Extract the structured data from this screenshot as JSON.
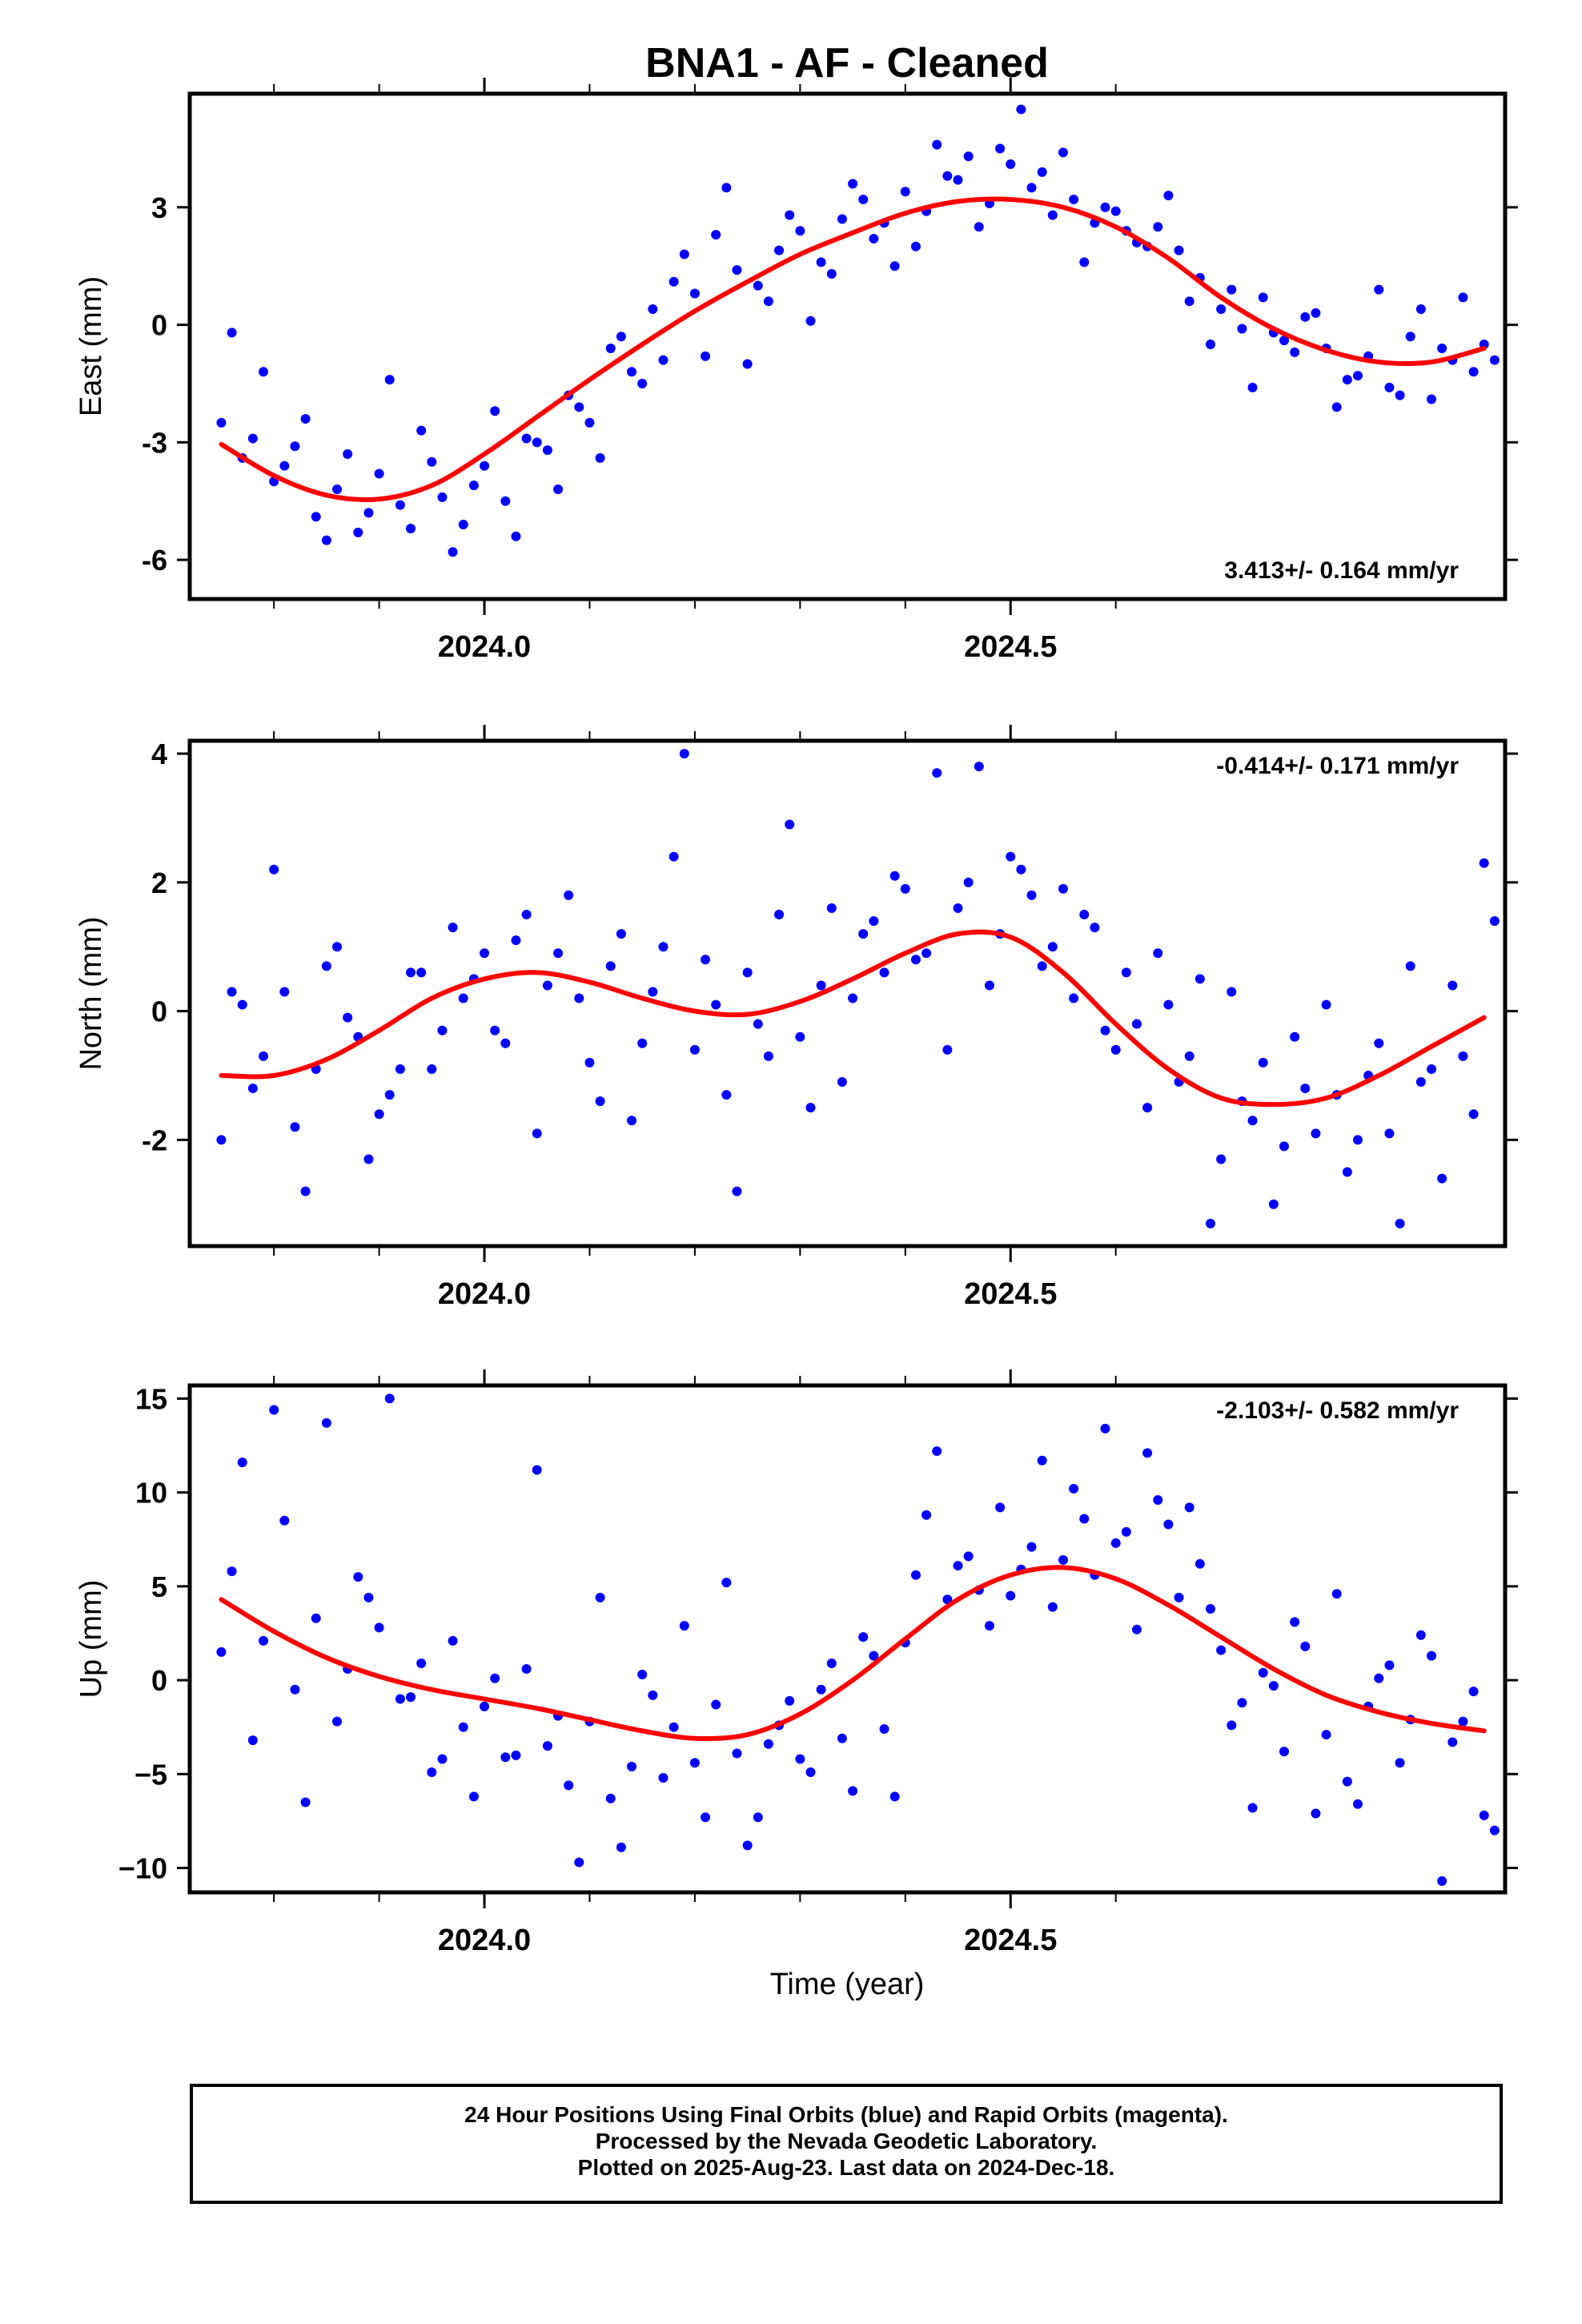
{
  "title": "BNA1  - AF - Cleaned",
  "xlabel": "Time (year)",
  "footer": {
    "line1": "24 Hour Positions Using Final Orbits (blue) and Rapid Orbits (magenta).",
    "line2": "Processed by the Nevada Geodetic Laboratory.",
    "line3": "Plotted on 2025-Aug-23. Last data on 2024-Dec-18."
  },
  "colors": {
    "points": "#0000ff",
    "fit": "#ff0000",
    "axes": "#000000"
  },
  "chart_data": [
    {
      "type": "scatter",
      "ylabel": "East (mm)",
      "rate_label": "3.413+/- 0.164 mm/yr",
      "xlim": [
        2023.72,
        2024.97
      ],
      "ylim": [
        -7.0,
        5.9
      ],
      "xticks": [
        2024.0,
        2024.5
      ],
      "yticks": [
        -6,
        -3,
        0,
        3
      ],
      "ytick_labels": [
        "-6",
        "-3",
        "0",
        "3"
      ],
      "series": [
        {
          "kind": "points",
          "x": [
            2023.75,
            2023.77,
            2023.79,
            2023.8,
            2023.82,
            2023.84,
            2023.86,
            2023.88,
            2023.9,
            2023.92,
            2023.94,
            2023.96,
            2023.98,
            2024.0,
            2024.02,
            2024.04,
            2024.06,
            2024.08,
            2024.1,
            2024.12,
            2024.14,
            2024.16,
            2024.18,
            2024.2,
            2024.22,
            2024.24,
            2024.26,
            2024.28,
            2024.3,
            2024.32,
            2024.34,
            2024.36,
            2024.38,
            2024.4,
            2024.42,
            2024.44,
            2024.46,
            2024.48,
            2024.5,
            2024.52,
            2024.54,
            2024.56,
            2024.58,
            2024.6,
            2024.62,
            2024.64,
            2024.66,
            2024.68,
            2024.7,
            2024.72,
            2024.74,
            2024.76,
            2024.78,
            2024.8,
            2024.82,
            2024.84,
            2024.86,
            2024.88,
            2024.9,
            2024.92,
            2024.94,
            2024.95
          ],
          "y": [
            -2.5,
            -3.4,
            -1.2,
            -4.0,
            -3.1,
            -4.9,
            -4.2,
            -5.3,
            -3.8,
            -4.6,
            -2.7,
            -4.4,
            -5.1,
            -3.6,
            -4.5,
            -2.9,
            -3.2,
            -1.8,
            -2.5,
            -0.6,
            -1.2,
            0.4,
            1.1,
            0.8,
            2.3,
            1.4,
            1.0,
            1.9,
            2.4,
            1.6,
            2.7,
            3.2,
            2.6,
            3.4,
            2.9,
            3.8,
            4.3,
            3.1,
            4.1,
            3.5,
            2.8,
            3.2,
            2.6,
            2.9,
            2.1,
            2.5,
            1.9,
            1.2,
            0.4,
            -0.1,
            0.7,
            -0.4,
            0.2,
            -0.6,
            -1.4,
            -0.8,
            -1.6,
            -0.3,
            -1.9,
            -0.9,
            -1.2,
            -0.5
          ]
        },
        {
          "kind": "points",
          "x": [
            2023.76,
            2023.78,
            2023.81,
            2023.83,
            2023.85,
            2023.87,
            2023.89,
            2023.91,
            2023.93,
            2023.95,
            2023.97,
            2023.99,
            2024.01,
            2024.03,
            2024.05,
            2024.07,
            2024.09,
            2024.11,
            2024.13,
            2024.15,
            2024.17,
            2024.19,
            2024.21,
            2024.23,
            2024.25,
            2024.27,
            2024.29,
            2024.31,
            2024.33,
            2024.35,
            2024.37,
            2024.39,
            2024.41,
            2024.43,
            2024.45,
            2024.47,
            2024.49,
            2024.51,
            2024.53,
            2024.55,
            2024.57,
            2024.59,
            2024.61,
            2024.63,
            2024.65,
            2024.67,
            2024.69,
            2024.71,
            2024.73,
            2024.75,
            2024.77,
            2024.79,
            2024.81,
            2024.83,
            2024.85,
            2024.87,
            2024.89,
            2024.91,
            2024.93,
            2024.96
          ],
          "y": [
            -0.2,
            -2.9,
            -3.6,
            -2.4,
            -5.5,
            -3.3,
            -4.8,
            -1.4,
            -5.2,
            -3.5,
            -5.8,
            -4.1,
            -2.2,
            -5.4,
            -3.0,
            -4.2,
            -2.1,
            -3.4,
            -0.3,
            -1.5,
            -0.9,
            1.8,
            -0.8,
            3.5,
            -1.0,
            0.6,
            2.8,
            0.1,
            1.3,
            3.6,
            2.2,
            1.5,
            2.0,
            4.6,
            3.7,
            2.5,
            4.5,
            5.5,
            3.9,
            4.4,
            1.6,
            3.0,
            2.4,
            2.0,
            3.3,
            0.6,
            -0.5,
            0.9,
            -1.6,
            -0.2,
            -0.7,
            0.3,
            -2.1,
            -1.3,
            0.9,
            -1.8,
            0.4,
            -0.6,
            0.7,
            -0.9
          ]
        },
        {
          "kind": "fit",
          "x": [
            2023.75,
            2023.8,
            2023.85,
            2023.9,
            2023.95,
            2024.0,
            2024.05,
            2024.1,
            2024.15,
            2024.2,
            2024.25,
            2024.3,
            2024.35,
            2024.4,
            2024.45,
            2024.5,
            2024.55,
            2024.6,
            2024.65,
            2024.7,
            2024.75,
            2024.8,
            2024.85,
            2024.9,
            2024.95
          ],
          "y": [
            -3.05,
            -3.85,
            -4.35,
            -4.45,
            -4.1,
            -3.3,
            -2.35,
            -1.4,
            -0.5,
            0.35,
            1.1,
            1.8,
            2.35,
            2.85,
            3.15,
            3.2,
            3.0,
            2.5,
            1.7,
            0.7,
            -0.1,
            -0.65,
            -0.95,
            -0.95,
            -0.6
          ]
        }
      ]
    },
    {
      "type": "scatter",
      "ylabel": "North (mm)",
      "rate_label": "-0.414+/- 0.171 mm/yr",
      "xlim": [
        2023.72,
        2024.97
      ],
      "ylim": [
        -3.65,
        4.2
      ],
      "xticks": [
        2024.0,
        2024.5
      ],
      "yticks": [
        -2,
        0,
        2,
        4
      ],
      "ytick_labels": [
        "-2",
        "0",
        "2",
        "4"
      ],
      "series": [
        {
          "kind": "points",
          "x": [
            2023.75,
            2023.77,
            2023.79,
            2023.8,
            2023.82,
            2023.84,
            2023.86,
            2023.88,
            2023.9,
            2023.92,
            2023.94,
            2023.96,
            2023.98,
            2024.0,
            2024.02,
            2024.04,
            2024.06,
            2024.08,
            2024.1,
            2024.12,
            2024.14,
            2024.16,
            2024.18,
            2024.2,
            2024.22,
            2024.24,
            2024.26,
            2024.28,
            2024.3,
            2024.32,
            2024.34,
            2024.36,
            2024.38,
            2024.4,
            2024.42,
            2024.44,
            2024.46,
            2024.48,
            2024.5,
            2024.52,
            2024.54,
            2024.56,
            2024.58,
            2024.6,
            2024.62,
            2024.64,
            2024.66,
            2024.68,
            2024.7,
            2024.72,
            2024.74,
            2024.76,
            2024.78,
            2024.8,
            2024.82,
            2024.84,
            2024.86,
            2024.88,
            2024.9,
            2024.92,
            2024.94,
            2024.95
          ],
          "y": [
            -2.0,
            0.1,
            -0.7,
            2.2,
            -1.8,
            -0.9,
            1.0,
            -0.4,
            -1.6,
            -0.9,
            0.6,
            -0.3,
            0.2,
            0.9,
            -0.5,
            1.5,
            0.4,
            1.8,
            -0.8,
            0.7,
            -1.7,
            0.3,
            2.4,
            -0.6,
            0.1,
            -2.8,
            -0.2,
            1.5,
            -0.4,
            0.4,
            -1.1,
            1.2,
            0.6,
            1.9,
            0.9,
            -0.6,
            2.0,
            0.4,
            2.4,
            1.8,
            1.0,
            0.2,
            1.3,
            -0.6,
            -0.2,
            0.9,
            -1.1,
            0.5,
            -2.3,
            -1.4,
            -0.8,
            -2.1,
            -1.2,
            0.1,
            -2.5,
            -1.0,
            -1.9,
            0.7,
            -0.9,
            0.4,
            -1.6,
            2.3
          ]
        },
        {
          "kind": "points",
          "x": [
            2023.76,
            2023.78,
            2023.81,
            2023.83,
            2023.85,
            2023.87,
            2023.89,
            2023.91,
            2023.93,
            2023.95,
            2023.97,
            2023.99,
            2024.01,
            2024.03,
            2024.05,
            2024.07,
            2024.09,
            2024.11,
            2024.13,
            2024.15,
            2024.17,
            2024.19,
            2024.21,
            2024.23,
            2024.25,
            2024.27,
            2024.29,
            2024.31,
            2024.33,
            2024.35,
            2024.37,
            2024.39,
            2024.41,
            2024.43,
            2024.45,
            2024.47,
            2024.49,
            2024.51,
            2024.53,
            2024.55,
            2024.57,
            2024.59,
            2024.61,
            2024.63,
            2024.65,
            2024.67,
            2024.69,
            2024.71,
            2024.73,
            2024.75,
            2024.77,
            2024.79,
            2024.81,
            2024.83,
            2024.85,
            2024.87,
            2024.89,
            2024.91,
            2024.93,
            2024.96
          ],
          "y": [
            0.3,
            -1.2,
            0.3,
            -2.8,
            0.7,
            -0.1,
            -2.3,
            -1.3,
            0.6,
            -0.9,
            1.3,
            0.5,
            -0.3,
            1.1,
            -1.9,
            0.9,
            0.2,
            -1.4,
            1.2,
            -0.5,
            1.0,
            4.0,
            0.8,
            -1.3,
            0.6,
            -0.7,
            2.9,
            -1.5,
            1.6,
            0.2,
            1.4,
            2.1,
            0.8,
            3.7,
            1.6,
            3.8,
            1.2,
            2.2,
            0.7,
            1.9,
            1.5,
            -0.3,
            0.6,
            -1.5,
            0.1,
            -0.7,
            -3.3,
            0.3,
            -1.7,
            -3.0,
            -0.4,
            -1.9,
            -1.3,
            -2.0,
            -0.5,
            -3.3,
            -1.1,
            -2.6,
            -0.7,
            1.4
          ]
        },
        {
          "kind": "fit",
          "x": [
            2023.75,
            2023.8,
            2023.85,
            2023.9,
            2023.95,
            2024.0,
            2024.05,
            2024.1,
            2024.15,
            2024.2,
            2024.25,
            2024.3,
            2024.35,
            2024.4,
            2024.45,
            2024.5,
            2024.55,
            2024.6,
            2024.65,
            2024.7,
            2024.75,
            2024.8,
            2024.85,
            2024.9,
            2024.95
          ],
          "y": [
            -1.0,
            -1.0,
            -0.75,
            -0.3,
            0.2,
            0.5,
            0.6,
            0.45,
            0.2,
            0.0,
            -0.05,
            0.15,
            0.5,
            0.9,
            1.2,
            1.15,
            0.6,
            -0.2,
            -0.9,
            -1.35,
            -1.45,
            -1.35,
            -1.0,
            -0.55,
            -0.1
          ]
        }
      ]
    },
    {
      "type": "scatter",
      "ylabel": "Up (mm)",
      "rate_label": "-2.103+/- 0.582 mm/yr",
      "xlim": [
        2023.72,
        2024.97
      ],
      "ylim": [
        -11.3,
        15.7
      ],
      "xticks": [
        2024.0,
        2024.5
      ],
      "yticks": [
        -10,
        -5,
        0,
        5,
        10,
        15
      ],
      "ytick_labels": [
        "−10",
        "−5",
        "0",
        "5",
        "10",
        "15"
      ],
      "series": [
        {
          "kind": "points",
          "x": [
            2023.75,
            2023.77,
            2023.79,
            2023.8,
            2023.82,
            2023.84,
            2023.86,
            2023.88,
            2023.9,
            2023.92,
            2023.94,
            2023.96,
            2023.98,
            2024.0,
            2024.02,
            2024.04,
            2024.06,
            2024.08,
            2024.1,
            2024.12,
            2024.14,
            2024.16,
            2024.18,
            2024.2,
            2024.22,
            2024.24,
            2024.26,
            2024.28,
            2024.3,
            2024.32,
            2024.34,
            2024.36,
            2024.38,
            2024.4,
            2024.42,
            2024.44,
            2024.46,
            2024.48,
            2024.5,
            2024.52,
            2024.54,
            2024.56,
            2024.58,
            2024.6,
            2024.62,
            2024.64,
            2024.66,
            2024.68,
            2024.7,
            2024.72,
            2024.74,
            2024.76,
            2024.78,
            2024.8,
            2024.82,
            2024.84,
            2024.86,
            2024.88,
            2024.9,
            2024.92,
            2024.94,
            2024.95
          ],
          "y": [
            1.5,
            11.6,
            2.1,
            14.4,
            -0.5,
            3.3,
            -2.2,
            5.5,
            2.8,
            -1.0,
            0.9,
            -4.2,
            -2.5,
            -1.4,
            -4.1,
            0.6,
            -3.5,
            -5.6,
            -2.2,
            -6.3,
            -4.6,
            -0.8,
            -2.5,
            -4.4,
            -1.3,
            -3.9,
            -7.3,
            -2.4,
            -4.2,
            -0.5,
            -3.1,
            2.3,
            -2.6,
            2.0,
            8.8,
            4.3,
            6.6,
            2.9,
            4.5,
            7.1,
            3.9,
            10.2,
            5.6,
            7.3,
            2.7,
            9.6,
            4.4,
            6.2,
            1.6,
            -1.2,
            0.4,
            -3.8,
            1.8,
            -2.9,
            -5.4,
            -1.4,
            0.8,
            -2.1,
            1.3,
            -3.3,
            -0.6,
            -7.2
          ]
        },
        {
          "kind": "points",
          "x": [
            2023.76,
            2023.78,
            2023.81,
            2023.83,
            2023.85,
            2023.87,
            2023.89,
            2023.91,
            2023.93,
            2023.95,
            2023.97,
            2023.99,
            2024.01,
            2024.03,
            2024.05,
            2024.07,
            2024.09,
            2024.11,
            2024.13,
            2024.15,
            2024.17,
            2024.19,
            2024.21,
            2024.23,
            2024.25,
            2024.27,
            2024.29,
            2024.31,
            2024.33,
            2024.35,
            2024.37,
            2024.39,
            2024.41,
            2024.43,
            2024.45,
            2024.47,
            2024.49,
            2024.51,
            2024.53,
            2024.55,
            2024.57,
            2024.59,
            2024.61,
            2024.63,
            2024.65,
            2024.67,
            2024.69,
            2024.71,
            2024.73,
            2024.75,
            2024.77,
            2024.79,
            2024.81,
            2024.83,
            2024.85,
            2024.87,
            2024.89,
            2024.91,
            2024.93,
            2024.96
          ],
          "y": [
            5.8,
            -3.2,
            8.5,
            -6.5,
            13.7,
            0.6,
            4.4,
            15.0,
            -0.9,
            -4.9,
            2.1,
            -6.2,
            0.1,
            -4.0,
            11.2,
            -1.9,
            -9.7,
            4.4,
            -8.9,
            0.3,
            -5.2,
            2.9,
            -7.3,
            5.2,
            -8.8,
            -3.4,
            -1.1,
            -4.9,
            0.9,
            -5.9,
            1.3,
            -6.2,
            5.6,
            12.2,
            6.1,
            4.8,
            9.2,
            5.9,
            11.7,
            6.4,
            8.6,
            13.4,
            7.9,
            12.1,
            8.3,
            9.2,
            3.8,
            -2.4,
            -6.8,
            -0.3,
            3.1,
            -7.1,
            4.6,
            -6.6,
            0.1,
            -4.4,
            2.4,
            -10.7,
            -2.2,
            -8.0
          ]
        },
        {
          "kind": "fit",
          "x": [
            2023.75,
            2023.8,
            2023.85,
            2023.9,
            2023.95,
            2024.0,
            2024.05,
            2024.1,
            2024.15,
            2024.2,
            2024.25,
            2024.3,
            2024.35,
            2024.4,
            2024.45,
            2024.5,
            2024.55,
            2024.6,
            2024.65,
            2024.7,
            2024.75,
            2024.8,
            2024.85,
            2024.9,
            2024.95
          ],
          "y": [
            4.3,
            2.6,
            1.2,
            0.2,
            -0.5,
            -1.0,
            -1.5,
            -2.1,
            -2.7,
            -3.1,
            -2.9,
            -1.8,
            0.0,
            2.2,
            4.3,
            5.6,
            6.0,
            5.4,
            4.0,
            2.3,
            0.6,
            -0.8,
            -1.7,
            -2.3,
            -2.7
          ]
        }
      ]
    }
  ]
}
